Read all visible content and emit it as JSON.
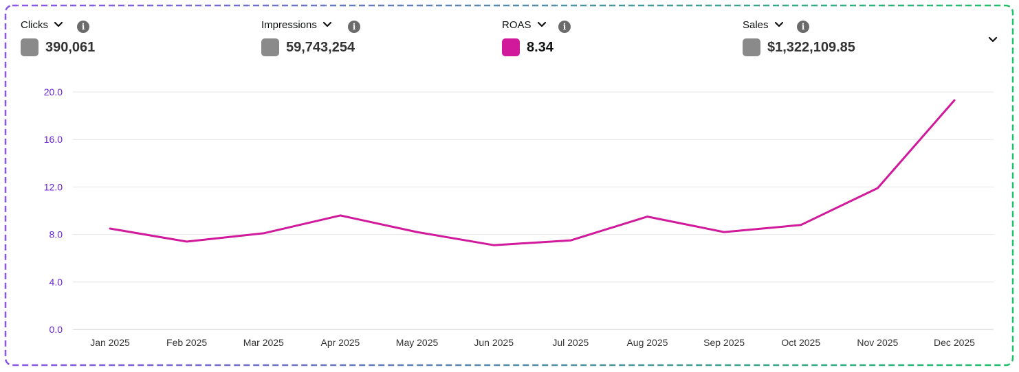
{
  "metrics": [
    {
      "label": "Clicks",
      "value": "390,061",
      "swatch_color": "#8a8a8a"
    },
    {
      "label": "Impressions",
      "value": "59,743,254",
      "swatch_color": "#8a8a8a"
    },
    {
      "label": "ROAS",
      "value": "8.34",
      "swatch_color": "#d0199b"
    },
    {
      "label": "Sales",
      "value": "$1,322,109.85",
      "swatch_color": "#8a8a8a"
    }
  ],
  "colors": {
    "line": "#d0199b",
    "axis_text": "#6a21d6",
    "grid": "#e6e6e6"
  },
  "chart_data": {
    "type": "line",
    "x": [
      "Jan 2025",
      "Feb 2025",
      "Mar 2025",
      "Apr 2025",
      "May 2025",
      "Jun 2025",
      "Jul 2025",
      "Aug 2025",
      "Sep 2025",
      "Oct 2025",
      "Nov 2025",
      "Dec 2025"
    ],
    "series": [
      {
        "name": "ROAS",
        "values": [
          8.5,
          7.4,
          8.1,
          9.6,
          8.2,
          7.1,
          7.5,
          9.5,
          8.2,
          8.8,
          11.9,
          19.3
        ]
      }
    ],
    "y_ticks": [
      "0.0",
      "4.0",
      "8.0",
      "12.0",
      "16.0",
      "20.0"
    ],
    "ylim": [
      0,
      20
    ],
    "grid": true,
    "legend": "none"
  }
}
